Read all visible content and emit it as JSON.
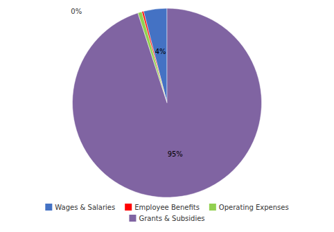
{
  "chart_data": {
    "type": "pie",
    "categories": [
      "Wages & Salaries",
      "Employee Benefits",
      "Operating Expenses",
      "Grants & Subsidies"
    ],
    "values": [
      4,
      0.3,
      0.7,
      95
    ],
    "value_labels": [
      "4%",
      null,
      null,
      "95%"
    ],
    "colors": [
      "#4472C4",
      "#FF0000",
      "#92D050",
      "#8064A2"
    ],
    "data_labels": true,
    "legend": "bottom",
    "annotations": [
      "0%"
    ]
  }
}
